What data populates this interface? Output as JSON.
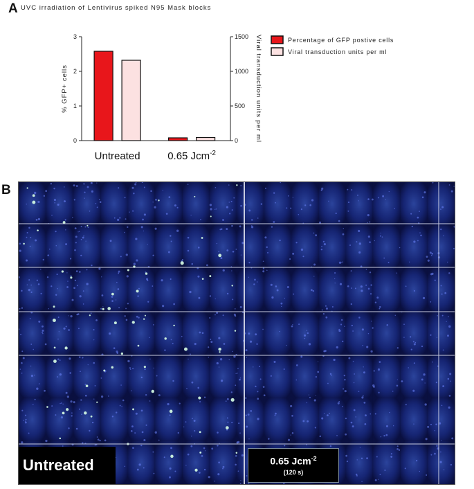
{
  "panel_a_letter": "A",
  "panel_b_letter": "B",
  "chart_data": {
    "type": "bar",
    "title": "UVC irradiation of Lentivirus spiked N95 Mask blocks",
    "categories": [
      "Untreated",
      "0.65 Jcm"
    ],
    "category_superscripts": [
      "",
      "-2"
    ],
    "ylabel": "% GFP+ cells",
    "ylabel_right": "Viral transduction units per ml",
    "ylim": [
      0,
      3
    ],
    "yticks": [
      "0",
      "1",
      "2",
      "3"
    ],
    "ylim_right": [
      0,
      1500
    ],
    "yticks_right": [
      "0",
      "500",
      "1000",
      "1500"
    ],
    "series": [
      {
        "name": "Percentage of GFP postive cells",
        "axis": "left",
        "color": "#e8161b",
        "values": [
          2.58,
          0.08
        ]
      },
      {
        "name": "Viral transduction units per ml",
        "axis": "right",
        "color": "#fce1e1",
        "values": [
          1160,
          45
        ]
      }
    ],
    "legend_position": "right",
    "grid": false
  },
  "micrograph": {
    "untreated_label": "Untreated",
    "treated_dose": "0.65 Jcm",
    "treated_dose_sup": "-2",
    "treated_time": "(120 s)"
  }
}
